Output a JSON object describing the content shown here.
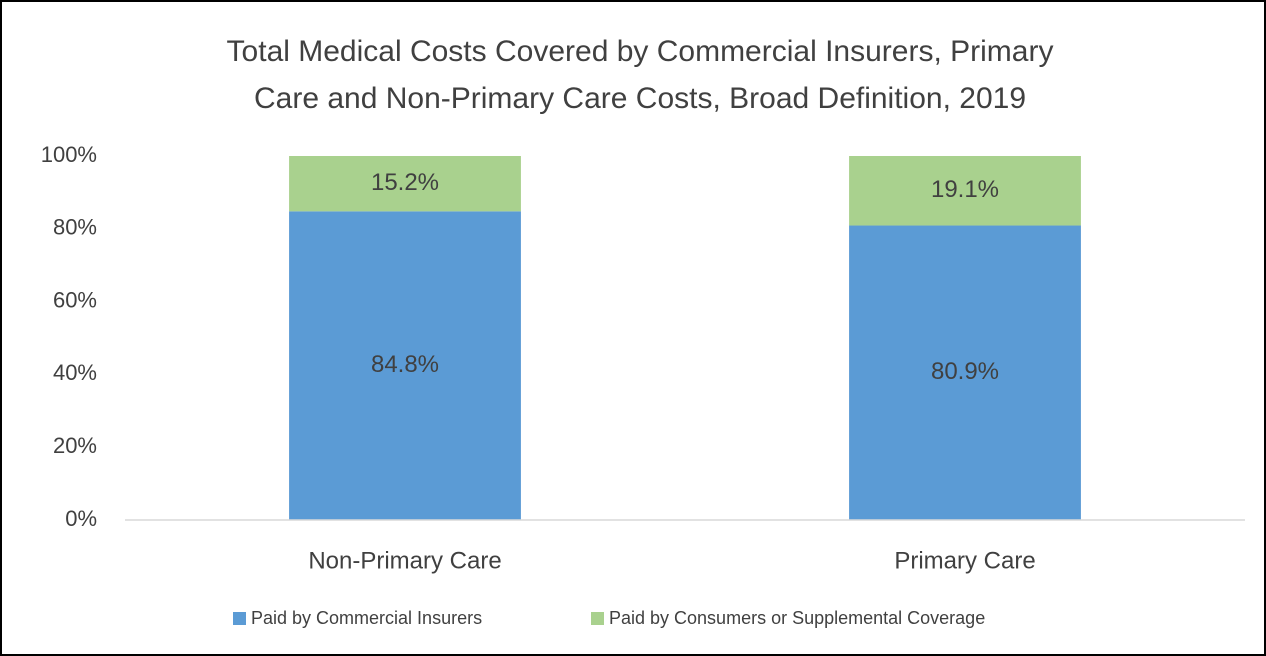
{
  "chart_data": {
    "type": "stacked_bar",
    "title": [
      "Total Medical Costs Covered by Commercial Insurers, Primary",
      "Care and Non-Primary Care Costs, Broad Definition, 2019"
    ],
    "categories": [
      "Non-Primary Care",
      "Primary Care"
    ],
    "series": [
      {
        "name": "Paid by Commercial Insurers",
        "color": "#5b9bd5",
        "values": [
          84.8,
          80.9
        ],
        "value_labels": [
          "84.8%",
          "80.9%"
        ]
      },
      {
        "name": "Paid by Consumers or Supplemental Coverage",
        "color": "#a9d18e",
        "values": [
          15.2,
          19.1
        ],
        "value_labels": [
          "15.2%",
          "19.1%"
        ]
      }
    ],
    "ylim": [
      0,
      100
    ],
    "yticks": [
      {
        "value": 0,
        "label": "0%"
      },
      {
        "value": 20,
        "label": "20%"
      },
      {
        "value": 40,
        "label": "40%"
      },
      {
        "value": 60,
        "label": "60%"
      },
      {
        "value": 80,
        "label": "80%"
      },
      {
        "value": 100,
        "label": "100%"
      }
    ],
    "grid": false,
    "legend": "bottom"
  }
}
